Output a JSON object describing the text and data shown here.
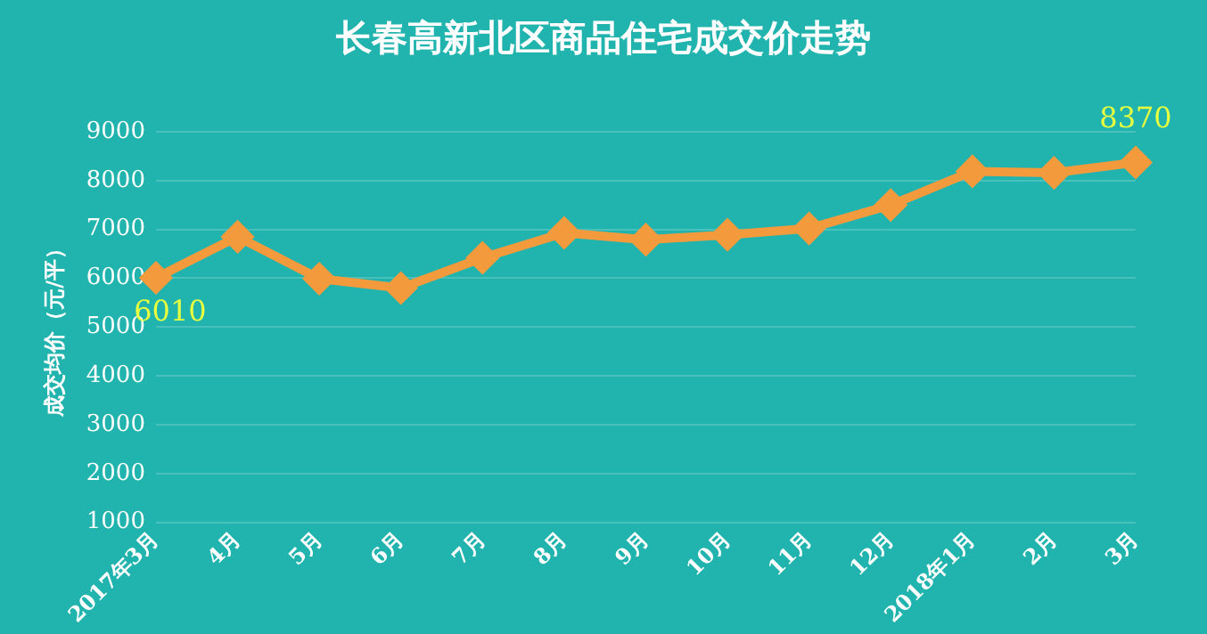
{
  "chart_data": {
    "type": "line",
    "title": "长春高新北区商品住宅成交价走势",
    "ylabel": "成交均价（元/平）",
    "categories": [
      "2017年3月",
      "4月",
      "5月",
      "6月",
      "7月",
      "8月",
      "9月",
      "10月",
      "11月",
      "12月",
      "2018年1月",
      "2月",
      "3月"
    ],
    "series": [
      {
        "color": "#f39a3c",
        "values": [
          6010,
          6850,
          5990,
          5800,
          6420,
          6930,
          6790,
          6890,
          7020,
          7500,
          8190,
          8160,
          8370
        ],
        "value_labels": [
          "6010",
          null,
          null,
          null,
          null,
          null,
          null,
          null,
          null,
          null,
          null,
          null,
          "8370"
        ]
      }
    ],
    "ylim": [
      1000,
      9000
    ],
    "yticks": [
      1000,
      2000,
      3000,
      4000,
      5000,
      6000,
      7000,
      8000,
      9000
    ],
    "grid": "y",
    "marker": "diamond",
    "line_style": "solid",
    "legend": false
  }
}
